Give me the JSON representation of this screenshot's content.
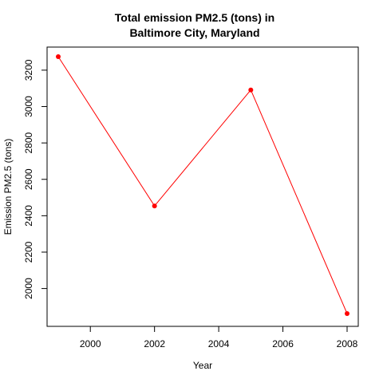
{
  "chart_data": {
    "type": "line",
    "title_lines": [
      "Total emission PM2.5 (tons) in",
      "Baltimore City, Maryland"
    ],
    "xlabel": "Year",
    "ylabel": "Emission PM2.5 (tons)",
    "x": [
      1999,
      2002,
      2005,
      2008
    ],
    "series": [
      {
        "values": [
          3274.18,
          2453.92,
          3091.35,
          1862.28
        ]
      }
    ],
    "xlim": [
      1999,
      2008
    ],
    "ylim": [
      1862.28,
      3274.18
    ],
    "xticks": [
      2000,
      2002,
      2004,
      2006,
      2008
    ],
    "yticks": [
      2000,
      2200,
      2400,
      2600,
      2800,
      3000,
      3200
    ],
    "xtick_labels": [
      "2000",
      "2002",
      "2004",
      "2006",
      "2008"
    ],
    "ytick_labels": [
      "2000",
      "2200",
      "2400",
      "2600",
      "2800",
      "3000",
      "3200"
    ],
    "grid": false,
    "legend": "none",
    "line_color": "#ff0000",
    "point_color": "#ff0000"
  }
}
